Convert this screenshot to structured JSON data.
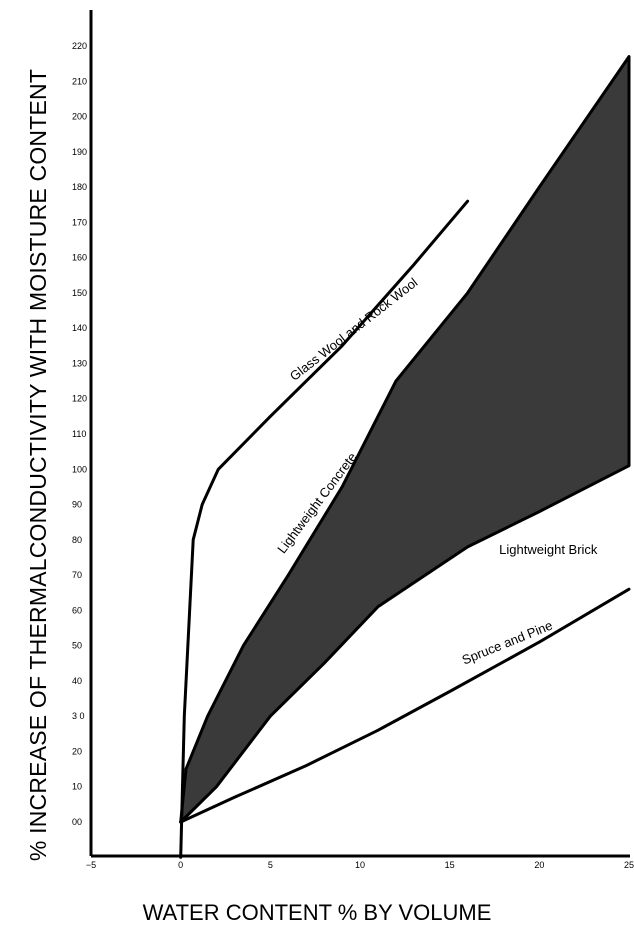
{
  "chart_data": {
    "type": "line",
    "xlabel": "WATER CONTENT % BY VOLUME",
    "ylabel": "% INCREASE OF THERMALCONDUCTIVITY WITH MOISTURE CONTENT",
    "xlim": [
      -5,
      25
    ],
    "ylim": [
      0,
      220
    ],
    "x_ticks": [
      {
        "value": -5,
        "label": "−5"
      },
      {
        "value": 0,
        "label": "0"
      },
      {
        "value": 5,
        "label": "5"
      },
      {
        "value": 10,
        "label": "10"
      },
      {
        "value": 15,
        "label": "15"
      },
      {
        "value": 20,
        "label": "20"
      },
      {
        "value": 25,
        "label": "25"
      }
    ],
    "y_ticks": [
      {
        "value": 0,
        "label": "00"
      },
      {
        "value": 10,
        "label": "10"
      },
      {
        "value": 20,
        "label": "20"
      },
      {
        "value": 30,
        "label": "3 0"
      },
      {
        "value": 40,
        "label": "40"
      },
      {
        "value": 50,
        "label": "50"
      },
      {
        "value": 60,
        "label": "60"
      },
      {
        "value": 70,
        "label": "70"
      },
      {
        "value": 80,
        "label": "80"
      },
      {
        "value": 90,
        "label": "90"
      },
      {
        "value": 100,
        "label": "100"
      },
      {
        "value": 110,
        "label": "110"
      },
      {
        "value": 120,
        "label": "120"
      },
      {
        "value": 130,
        "label": "130"
      },
      {
        "value": 140,
        "label": "140"
      },
      {
        "value": 150,
        "label": "150"
      },
      {
        "value": 160,
        "label": "160"
      },
      {
        "value": 170,
        "label": "170"
      },
      {
        "value": 180,
        "label": "180"
      },
      {
        "value": 190,
        "label": "190"
      },
      {
        "value": 200,
        "label": "200"
      },
      {
        "value": 210,
        "label": "210"
      },
      {
        "value": 220,
        "label": "220"
      }
    ],
    "grid": false,
    "series": [
      {
        "name": "Glass Wool and Rock Wool",
        "points": [
          [
            0,
            -10
          ],
          [
            0.2,
            30
          ],
          [
            0.7,
            80
          ],
          [
            1.2,
            90
          ],
          [
            2.1,
            100
          ],
          [
            5,
            115
          ],
          [
            9,
            135
          ],
          [
            13,
            158
          ],
          [
            16,
            176
          ]
        ]
      },
      {
        "name": "Lightweight Concrete",
        "points": [
          [
            0,
            0
          ],
          [
            0.3,
            15
          ],
          [
            1.5,
            30
          ],
          [
            3.5,
            50
          ],
          [
            6,
            70
          ],
          [
            9,
            95
          ],
          [
            12,
            125
          ],
          [
            16,
            150
          ],
          [
            20,
            180
          ],
          [
            25,
            217
          ]
        ]
      },
      {
        "name": "Lightweight Brick",
        "points": [
          [
            0,
            0
          ],
          [
            2,
            10
          ],
          [
            5,
            30
          ],
          [
            8,
            45
          ],
          [
            11,
            61
          ],
          [
            16,
            78
          ],
          [
            20,
            88
          ],
          [
            25,
            101
          ]
        ]
      },
      {
        "name": "Spruce and Pine",
        "points": [
          [
            0,
            0
          ],
          [
            3,
            7
          ],
          [
            7,
            16
          ],
          [
            11,
            26
          ],
          [
            15,
            37
          ],
          [
            20,
            51
          ],
          [
            25,
            66
          ]
        ]
      }
    ],
    "shaded_region": {
      "between": [
        "Lightweight Concrete",
        "Lightweight Brick"
      ],
      "color": "#3a3a3a"
    },
    "colors": {
      "line": "#000000",
      "fill": "#3a3a3a",
      "background": "#ffffff"
    }
  }
}
